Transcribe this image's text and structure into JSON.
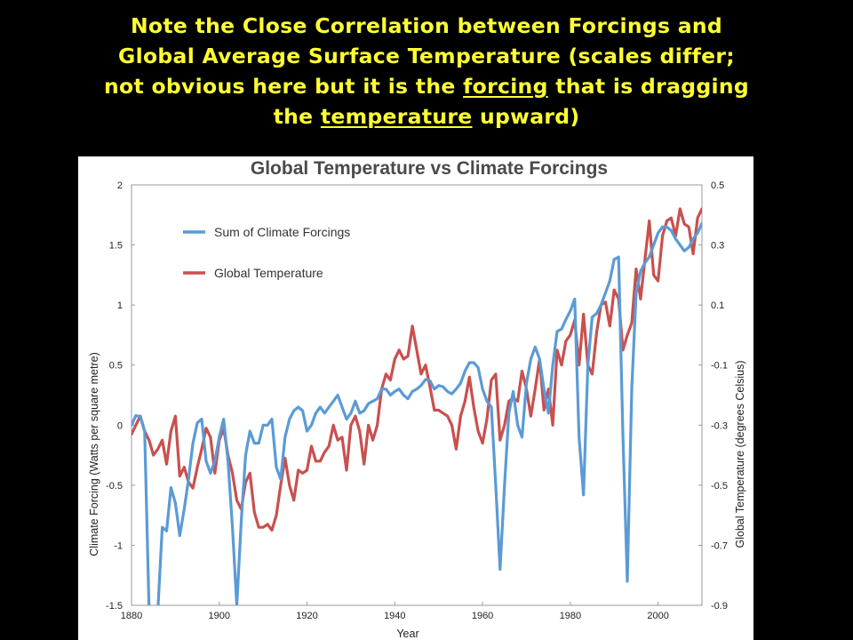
{
  "heading": {
    "lines": [
      {
        "before": "Note the Close Correlation between Forcings and",
        "underlined": "",
        "after": ""
      },
      {
        "before": "Global Average Surface Temperature (scales differ;",
        "underlined": "",
        "after": ""
      },
      {
        "before": "not obvious here but it is the ",
        "underlined": "forcing",
        "after": " that is dragging"
      },
      {
        "before": "the ",
        "underlined": "temperature",
        "after": " upward)"
      }
    ],
    "color": "#ffff33"
  },
  "chart_data": {
    "type": "line",
    "title": "Global Temperature vs Climate Forcings",
    "xlabel": "Year",
    "ylabel_left": "Climate Forcing (Watts per square metre)",
    "ylabel_right": "Global Temperature (degrees Celsius)",
    "xlim": [
      1880,
      2010
    ],
    "ylim_left": [
      -1.5,
      2
    ],
    "ylim_right": [
      -0.9,
      0.5
    ],
    "x_ticks": [
      "1880",
      "1900",
      "1920",
      "1940",
      "1960",
      "1980",
      "2000"
    ],
    "y_ticks_left": [
      "2",
      "1.5",
      "1",
      "0.5",
      "0",
      "-0.5",
      "-1",
      "-1.5"
    ],
    "y_ticks_right": [
      "0.5",
      "0.3",
      "0.1",
      "-0.1",
      "-0.3",
      "-0.5",
      "-0.7",
      "-0.9"
    ],
    "legend_position": "top-left",
    "series": [
      {
        "name": "Sum of Climate Forcings",
        "axis": "left",
        "color": "#5b9bd5",
        "points": [
          [
            1880,
            0.0
          ],
          [
            1881,
            0.08
          ],
          [
            1882,
            0.07
          ],
          [
            1883,
            -0.05
          ],
          [
            1884,
            -1.55
          ],
          [
            1885,
            -1.55
          ],
          [
            1886,
            -1.55
          ],
          [
            1887,
            -0.85
          ],
          [
            1888,
            -0.88
          ],
          [
            1889,
            -0.52
          ],
          [
            1890,
            -0.65
          ],
          [
            1891,
            -0.92
          ],
          [
            1892,
            -0.7
          ],
          [
            1893,
            -0.45
          ],
          [
            1894,
            -0.15
          ],
          [
            1895,
            0.02
          ],
          [
            1896,
            0.05
          ],
          [
            1897,
            -0.3
          ],
          [
            1898,
            -0.4
          ],
          [
            1899,
            -0.3
          ],
          [
            1900,
            -0.1
          ],
          [
            1901,
            0.05
          ],
          [
            1902,
            -0.3
          ],
          [
            1903,
            -0.85
          ],
          [
            1904,
            -1.5
          ],
          [
            1905,
            -0.8
          ],
          [
            1906,
            -0.25
          ],
          [
            1907,
            -0.05
          ],
          [
            1908,
            -0.15
          ],
          [
            1909,
            -0.15
          ],
          [
            1910,
            0.0
          ],
          [
            1911,
            0.0
          ],
          [
            1912,
            0.05
          ],
          [
            1913,
            -0.35
          ],
          [
            1914,
            -0.45
          ],
          [
            1915,
            -0.1
          ],
          [
            1916,
            0.05
          ],
          [
            1917,
            0.12
          ],
          [
            1918,
            0.15
          ],
          [
            1919,
            0.12
          ],
          [
            1920,
            -0.05
          ],
          [
            1921,
            0.0
          ],
          [
            1922,
            0.1
          ],
          [
            1923,
            0.15
          ],
          [
            1924,
            0.1
          ],
          [
            1925,
            0.15
          ],
          [
            1926,
            0.2
          ],
          [
            1927,
            0.25
          ],
          [
            1928,
            0.15
          ],
          [
            1929,
            0.05
          ],
          [
            1930,
            0.1
          ],
          [
            1931,
            0.2
          ],
          [
            1932,
            0.1
          ],
          [
            1933,
            0.12
          ],
          [
            1934,
            0.18
          ],
          [
            1935,
            0.2
          ],
          [
            1936,
            0.22
          ],
          [
            1937,
            0.3
          ],
          [
            1938,
            0.3
          ],
          [
            1939,
            0.25
          ],
          [
            1940,
            0.28
          ],
          [
            1941,
            0.3
          ],
          [
            1942,
            0.25
          ],
          [
            1943,
            0.22
          ],
          [
            1944,
            0.28
          ],
          [
            1945,
            0.3
          ],
          [
            1946,
            0.33
          ],
          [
            1947,
            0.38
          ],
          [
            1948,
            0.37
          ],
          [
            1949,
            0.3
          ],
          [
            1950,
            0.33
          ],
          [
            1951,
            0.32
          ],
          [
            1952,
            0.28
          ],
          [
            1953,
            0.26
          ],
          [
            1954,
            0.3
          ],
          [
            1955,
            0.35
          ],
          [
            1956,
            0.45
          ],
          [
            1957,
            0.52
          ],
          [
            1958,
            0.52
          ],
          [
            1959,
            0.48
          ],
          [
            1960,
            0.3
          ],
          [
            1961,
            0.2
          ],
          [
            1962,
            0.15
          ],
          [
            1963,
            -0.5
          ],
          [
            1964,
            -1.2
          ],
          [
            1965,
            -0.5
          ],
          [
            1966,
            0.1
          ],
          [
            1967,
            0.28
          ],
          [
            1968,
            0.0
          ],
          [
            1969,
            -0.1
          ],
          [
            1970,
            0.35
          ],
          [
            1971,
            0.55
          ],
          [
            1972,
            0.65
          ],
          [
            1973,
            0.55
          ],
          [
            1974,
            0.3
          ],
          [
            1975,
            0.1
          ],
          [
            1976,
            0.5
          ],
          [
            1977,
            0.78
          ],
          [
            1978,
            0.8
          ],
          [
            1979,
            0.88
          ],
          [
            1980,
            0.95
          ],
          [
            1981,
            1.05
          ],
          [
            1982,
            -0.1
          ],
          [
            1983,
            -0.58
          ],
          [
            1984,
            0.5
          ],
          [
            1985,
            0.9
          ],
          [
            1986,
            0.93
          ],
          [
            1987,
            1.0
          ],
          [
            1988,
            1.1
          ],
          [
            1989,
            1.2
          ],
          [
            1990,
            1.38
          ],
          [
            1991,
            1.4
          ],
          [
            1992,
            -0.1
          ],
          [
            1993,
            -1.3
          ],
          [
            1994,
            0.3
          ],
          [
            1995,
            1.1
          ],
          [
            1996,
            1.28
          ],
          [
            1997,
            1.35
          ],
          [
            1998,
            1.4
          ],
          [
            1999,
            1.5
          ],
          [
            2000,
            1.6
          ],
          [
            2001,
            1.65
          ],
          [
            2002,
            1.65
          ],
          [
            2003,
            1.62
          ],
          [
            2004,
            1.55
          ],
          [
            2005,
            1.5
          ],
          [
            2006,
            1.45
          ],
          [
            2007,
            1.48
          ],
          [
            2008,
            1.55
          ],
          [
            2009,
            1.6
          ],
          [
            2010,
            1.68
          ]
        ]
      },
      {
        "name": "Global Temperature",
        "axis": "right",
        "color": "#c9504e",
        "points": [
          [
            1880,
            -0.33
          ],
          [
            1881,
            -0.3
          ],
          [
            1882,
            -0.27
          ],
          [
            1883,
            -0.32
          ],
          [
            1884,
            -0.35
          ],
          [
            1885,
            -0.4
          ],
          [
            1886,
            -0.38
          ],
          [
            1887,
            -0.35
          ],
          [
            1888,
            -0.43
          ],
          [
            1889,
            -0.32
          ],
          [
            1890,
            -0.27
          ],
          [
            1891,
            -0.47
          ],
          [
            1892,
            -0.44
          ],
          [
            1893,
            -0.49
          ],
          [
            1894,
            -0.51
          ],
          [
            1895,
            -0.44
          ],
          [
            1896,
            -0.38
          ],
          [
            1897,
            -0.31
          ],
          [
            1898,
            -0.34
          ],
          [
            1899,
            -0.46
          ],
          [
            1900,
            -0.35
          ],
          [
            1901,
            -0.31
          ],
          [
            1902,
            -0.4
          ],
          [
            1903,
            -0.46
          ],
          [
            1904,
            -0.55
          ],
          [
            1905,
            -0.58
          ],
          [
            1906,
            -0.49
          ],
          [
            1907,
            -0.46
          ],
          [
            1908,
            -0.59
          ],
          [
            1909,
            -0.64
          ],
          [
            1910,
            -0.64
          ],
          [
            1911,
            -0.63
          ],
          [
            1912,
            -0.65
          ],
          [
            1913,
            -0.6
          ],
          [
            1914,
            -0.5
          ],
          [
            1915,
            -0.41
          ],
          [
            1916,
            -0.5
          ],
          [
            1917,
            -0.55
          ],
          [
            1918,
            -0.45
          ],
          [
            1919,
            -0.46
          ],
          [
            1920,
            -0.45
          ],
          [
            1921,
            -0.37
          ],
          [
            1922,
            -0.42
          ],
          [
            1923,
            -0.42
          ],
          [
            1924,
            -0.39
          ],
          [
            1925,
            -0.37
          ],
          [
            1926,
            -0.3
          ],
          [
            1927,
            -0.35
          ],
          [
            1928,
            -0.34
          ],
          [
            1929,
            -0.45
          ],
          [
            1930,
            -0.3
          ],
          [
            1931,
            -0.27
          ],
          [
            1932,
            -0.32
          ],
          [
            1933,
            -0.43
          ],
          [
            1934,
            -0.3
          ],
          [
            1935,
            -0.35
          ],
          [
            1936,
            -0.3
          ],
          [
            1937,
            -0.18
          ],
          [
            1938,
            -0.13
          ],
          [
            1939,
            -0.15
          ],
          [
            1940,
            -0.08
          ],
          [
            1941,
            -0.05
          ],
          [
            1942,
            -0.08
          ],
          [
            1943,
            -0.07
          ],
          [
            1944,
            0.03
          ],
          [
            1945,
            -0.05
          ],
          [
            1946,
            -0.13
          ],
          [
            1947,
            -0.1
          ],
          [
            1948,
            -0.17
          ],
          [
            1949,
            -0.25
          ],
          [
            1950,
            -0.25
          ],
          [
            1951,
            -0.26
          ],
          [
            1952,
            -0.27
          ],
          [
            1953,
            -0.3
          ],
          [
            1954,
            -0.38
          ],
          [
            1955,
            -0.27
          ],
          [
            1956,
            -0.22
          ],
          [
            1957,
            -0.14
          ],
          [
            1958,
            -0.24
          ],
          [
            1959,
            -0.32
          ],
          [
            1960,
            -0.36
          ],
          [
            1961,
            -0.28
          ],
          [
            1962,
            -0.15
          ],
          [
            1963,
            -0.13
          ],
          [
            1964,
            -0.35
          ],
          [
            1965,
            -0.3
          ],
          [
            1966,
            -0.22
          ],
          [
            1967,
            -0.21
          ],
          [
            1968,
            -0.22
          ],
          [
            1969,
            -0.12
          ],
          [
            1970,
            -0.18
          ],
          [
            1971,
            -0.27
          ],
          [
            1972,
            -0.18
          ],
          [
            1973,
            -0.08
          ],
          [
            1974,
            -0.25
          ],
          [
            1975,
            -0.18
          ],
          [
            1976,
            -0.3
          ],
          [
            1977,
            -0.05
          ],
          [
            1978,
            -0.1
          ],
          [
            1979,
            -0.02
          ],
          [
            1980,
            0.0
          ],
          [
            1981,
            0.05
          ],
          [
            1982,
            -0.1
          ],
          [
            1983,
            0.07
          ],
          [
            1984,
            -0.1
          ],
          [
            1985,
            -0.13
          ],
          [
            1986,
            0.01
          ],
          [
            1987,
            0.1
          ],
          [
            1988,
            0.11
          ],
          [
            1989,
            0.03
          ],
          [
            1990,
            0.15
          ],
          [
            1991,
            0.12
          ],
          [
            1992,
            -0.05
          ],
          [
            1993,
            0.0
          ],
          [
            1994,
            0.04
          ],
          [
            1995,
            0.22
          ],
          [
            1996,
            0.12
          ],
          [
            1997,
            0.25
          ],
          [
            1998,
            0.38
          ],
          [
            1999,
            0.2
          ],
          [
            2000,
            0.18
          ],
          [
            2001,
            0.33
          ],
          [
            2002,
            0.38
          ],
          [
            2003,
            0.39
          ],
          [
            2004,
            0.33
          ],
          [
            2005,
            0.42
          ],
          [
            2006,
            0.37
          ],
          [
            2007,
            0.36
          ],
          [
            2008,
            0.27
          ],
          [
            2009,
            0.39
          ],
          [
            2010,
            0.42
          ]
        ]
      }
    ]
  }
}
